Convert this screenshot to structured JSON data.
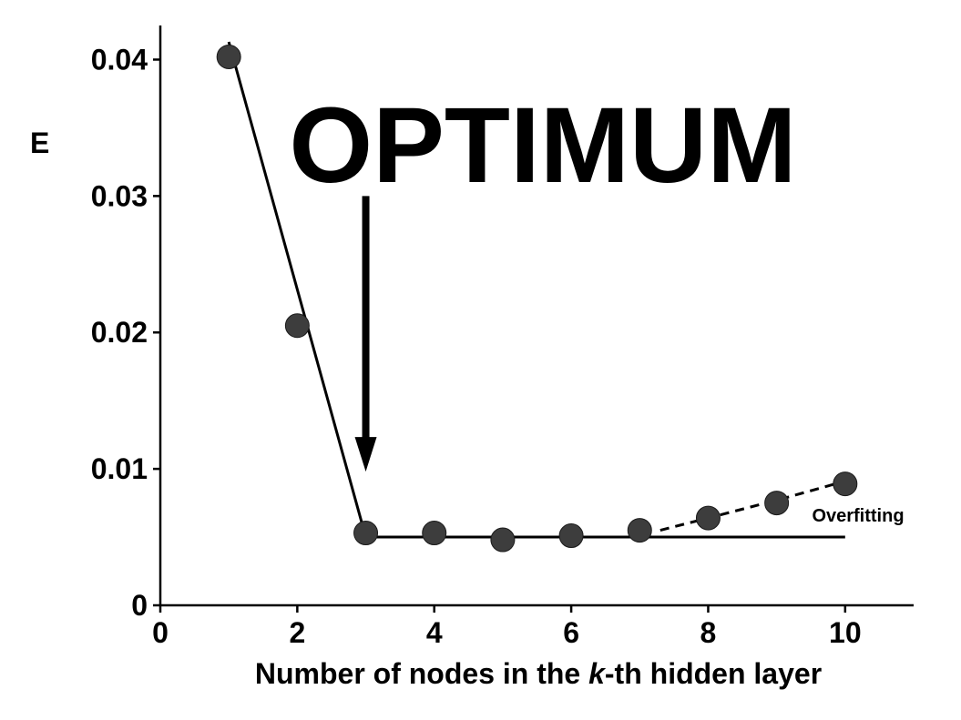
{
  "chart_data": {
    "type": "scatter",
    "xlabel_prefix": "Number of nodes in the ",
    "xlabel_italic": "k",
    "xlabel_suffix": "-th hidden layer",
    "ylabel": "E",
    "xlim": [
      0,
      11
    ],
    "ylim": [
      0,
      0.0425
    ],
    "x_ticks": [
      0,
      2,
      4,
      6,
      8,
      10
    ],
    "x_tick_labels": [
      "0",
      "2",
      "4",
      "6",
      "8",
      "10"
    ],
    "y_ticks": [
      0,
      0.01,
      0.02,
      0.03,
      0.04
    ],
    "y_tick_labels": [
      "0",
      "0.01",
      "0.02",
      "0.03",
      "0.04"
    ],
    "grid": false,
    "points": {
      "x": [
        1,
        2,
        3,
        4,
        5,
        6,
        7,
        8,
        9,
        10
      ],
      "y": [
        0.0402,
        0.0205,
        0.0053,
        0.0053,
        0.0048,
        0.0051,
        0.0055,
        0.0064,
        0.0075,
        0.0089
      ],
      "color": "#3d3d3d"
    },
    "fit_lines": [
      {
        "style": "solid",
        "x": [
          1,
          3
        ],
        "y": [
          0.0413,
          0.005
        ]
      },
      {
        "style": "solid",
        "x": [
          3,
          10
        ],
        "y": [
          0.005,
          0.005
        ]
      },
      {
        "style": "dashed",
        "x": [
          7.3,
          8,
          9,
          10
        ],
        "y": [
          0.0055,
          0.0064,
          0.0077,
          0.0091
        ]
      }
    ],
    "annotations": [
      {
        "text": "OPTIMUM"
      },
      {
        "text": "Overfitting"
      }
    ],
    "optimum_arrow": {
      "x": 3,
      "y_from": 0.03,
      "y_to": 0.0098
    }
  }
}
